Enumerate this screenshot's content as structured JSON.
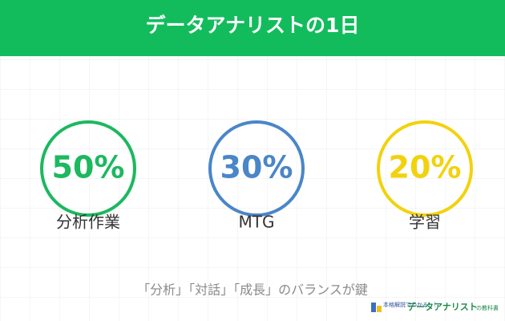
{
  "header": {
    "title": "データアナリストの1日"
  },
  "items": [
    {
      "value": "50%",
      "label": "分析作業",
      "color": "#1db85f"
    },
    {
      "value": "30%",
      "label": "MTG",
      "color": "#4a86c8"
    },
    {
      "value": "20%",
      "label": "学習",
      "color": "#f2d20f"
    }
  ],
  "footer": {
    "text": "「分析」「対話」「成長」のバランスが鍵"
  },
  "logo": {
    "tagline": "本格解説でわかる！！",
    "name": "データアナリスト",
    "suffix": "の教科書"
  }
}
